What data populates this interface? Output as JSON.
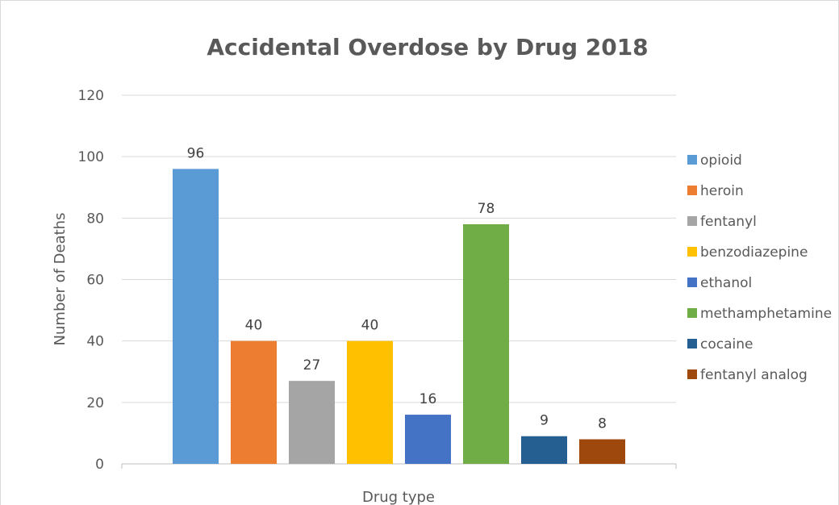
{
  "chart_data": {
    "type": "bar",
    "title": "Accidental Overdose by Drug 2018",
    "xlabel": "Drug type",
    "ylabel": "Number of Deaths",
    "ylim": [
      0,
      120
    ],
    "yticks": [
      0,
      20,
      40,
      60,
      80,
      100,
      120
    ],
    "grid": true,
    "legend": "right",
    "series": [
      {
        "name": "opioid",
        "value": 96,
        "color": "#5B9BD5"
      },
      {
        "name": "heroin",
        "value": 40,
        "color": "#ED7D31"
      },
      {
        "name": "fentanyl",
        "value": 27,
        "color": "#A5A5A5"
      },
      {
        "name": "benzodiazepine",
        "value": 40,
        "color": "#FFC000"
      },
      {
        "name": "ethanol",
        "value": 16,
        "color": "#4472C4"
      },
      {
        "name": "methamphetamine",
        "value": 78,
        "color": "#70AD47"
      },
      {
        "name": "cocaine",
        "value": 9,
        "color": "#255E91"
      },
      {
        "name": "fentanyl analog",
        "value": 8,
        "color": "#9E480E"
      }
    ]
  }
}
